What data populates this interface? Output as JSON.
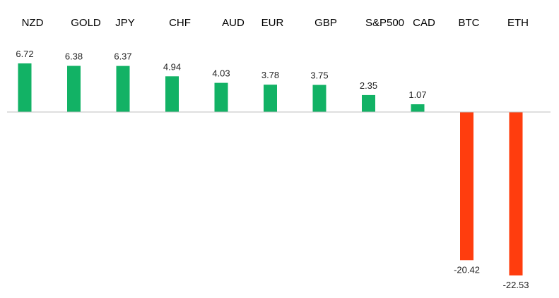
{
  "chart_data": {
    "type": "bar",
    "title": "",
    "xlabel": "",
    "ylabel": "",
    "categories": [
      "NZD",
      "GOLD",
      "JPY",
      "CHF",
      "AUD",
      "EUR",
      "GBP",
      "S&P500",
      "CAD",
      "BTC",
      "ETH"
    ],
    "values": [
      6.72,
      6.38,
      6.37,
      4.94,
      4.03,
      3.78,
      3.75,
      2.35,
      1.07,
      -20.42,
      -22.53
    ],
    "value_labels": [
      "6.72",
      "6.38",
      "6.37",
      "4.94",
      "4.03",
      "3.78",
      "3.75",
      "2.35",
      "1.07",
      "-20.42",
      "-22.53"
    ],
    "ylim": [
      -22.53,
      6.72
    ],
    "grid": false,
    "legend": "none",
    "colors": {
      "positive": "#12B265",
      "negative": "#FF3D0E",
      "axis": "#BFBFBF",
      "background": "#FFFFFF"
    }
  }
}
